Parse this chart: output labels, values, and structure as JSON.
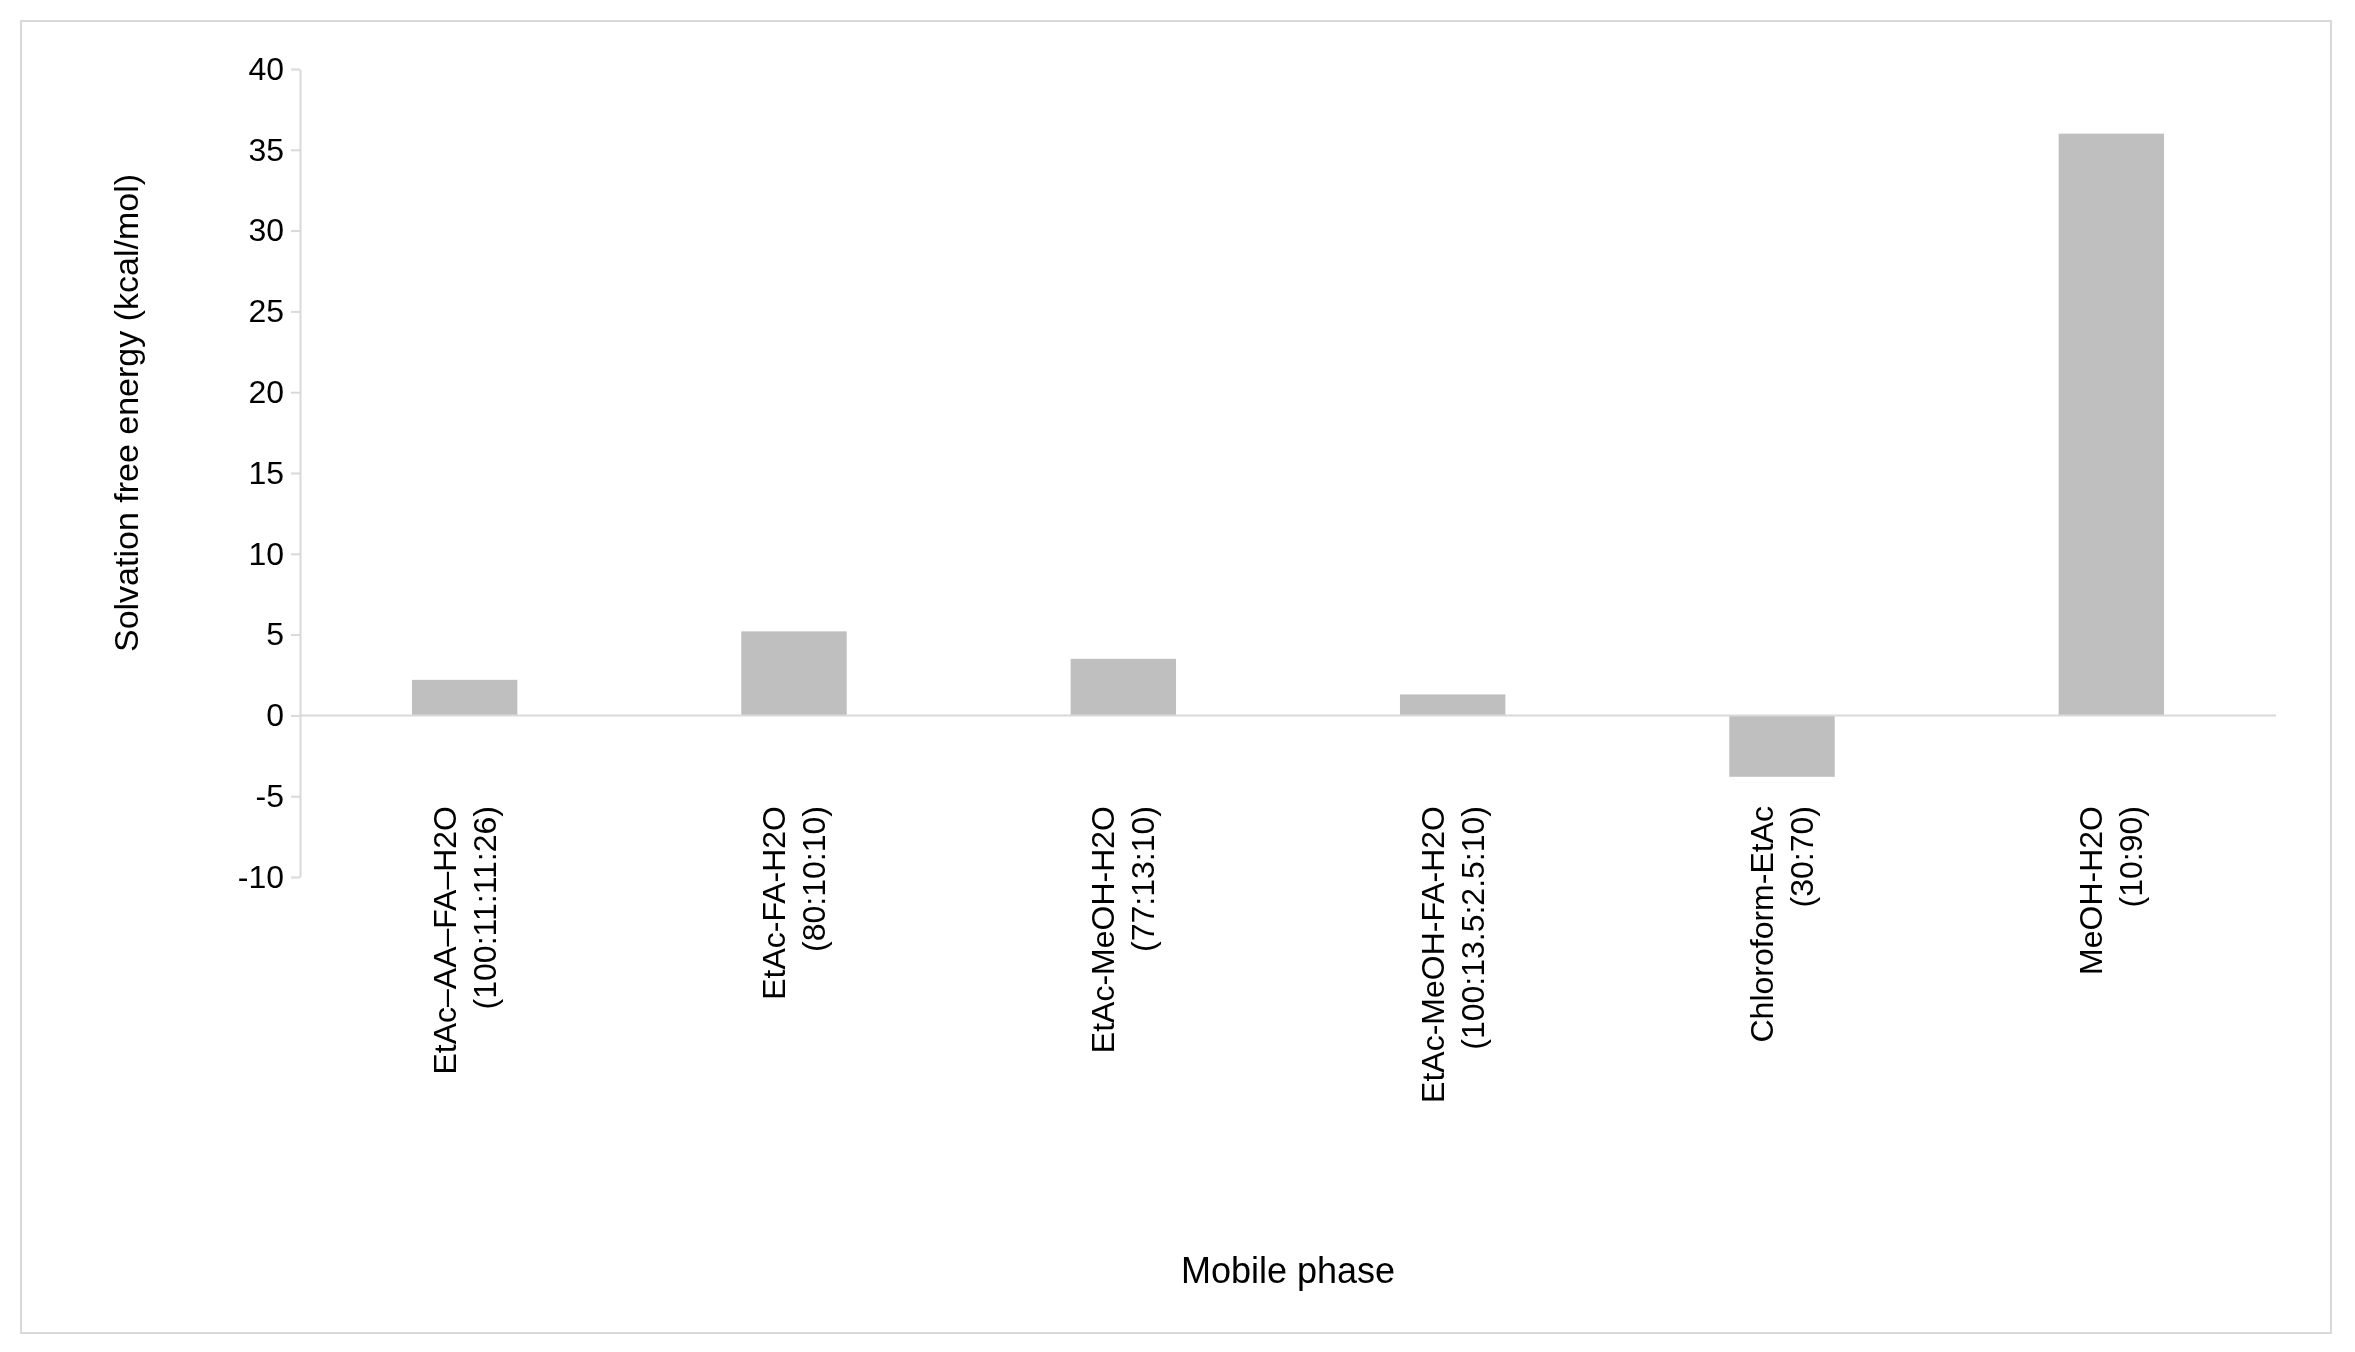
{
  "chart_data": {
    "type": "bar",
    "xlabel": "Mobile phase",
    "ylabel": "Solvation free energy (kcal/mol)",
    "categories": [
      "EtAc–AA–FA–H2O\n(100:11:11:26)",
      "EtAc-FA-H2O\n(80:10:10)",
      "EtAc-MeOH-H2O\n(77:13:10)",
      "EtAc-MeOH-FA-H2O\n(100:13.5:2.5:10)",
      "Chloroform-EtAc\n(30:70)",
      "MeOH-H2O\n(10:90)"
    ],
    "values": [
      2.2,
      5.2,
      3.5,
      1.3,
      -3.8,
      36
    ],
    "color": "#bfbfbf",
    "ylim": [
      -10,
      40
    ],
    "yticks": [
      -10,
      -5,
      0,
      5,
      10,
      15,
      20,
      25,
      30,
      35,
      40
    ]
  }
}
